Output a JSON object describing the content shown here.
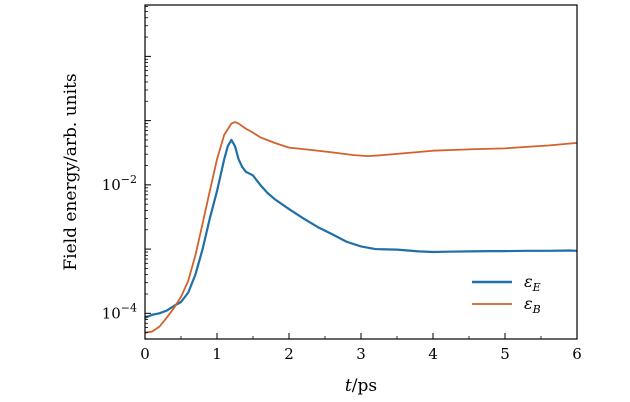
{
  "chart_data": {
    "type": "line",
    "xlabel": "t/ps",
    "ylabel": "Field energy/arb. units",
    "xlim": [
      0,
      6
    ],
    "ylim_log10": [
      -4.4,
      0.8
    ],
    "yscale": "log",
    "x_ticks": [
      {
        "value": 0,
        "label": "0"
      },
      {
        "value": 1,
        "label": "1"
      },
      {
        "value": 2,
        "label": "2"
      },
      {
        "value": 3,
        "label": "3"
      },
      {
        "value": 4,
        "label": "4"
      },
      {
        "value": 5,
        "label": "5"
      },
      {
        "value": 6,
        "label": "6"
      }
    ],
    "y_ticks": [
      {
        "value": 0.0001,
        "label": "10−4"
      },
      {
        "value": 0.01,
        "label": "10−2"
      }
    ],
    "legend_position": "lower-right",
    "series": [
      {
        "name": "εE",
        "color": "#1f6fa8",
        "x": [
          0,
          0.1,
          0.2,
          0.3,
          0.4,
          0.5,
          0.6,
          0.7,
          0.8,
          0.9,
          1.0,
          1.1,
          1.15,
          1.2,
          1.25,
          1.3,
          1.35,
          1.4,
          1.5,
          1.6,
          1.7,
          1.8,
          2.0,
          2.2,
          2.4,
          2.6,
          2.8,
          3.0,
          3.2,
          3.5,
          3.8,
          4.0,
          4.2,
          4.5,
          4.8,
          5.0,
          5.3,
          5.6,
          5.9,
          6.0
        ],
        "y": [
          8.5e-05,
          9.5e-05,
          0.0001,
          0.00011,
          0.00013,
          0.00015,
          0.00021,
          0.0004,
          0.001,
          0.003,
          0.008,
          0.025,
          0.04,
          0.05,
          0.04,
          0.025,
          0.019,
          0.016,
          0.014,
          0.01,
          0.0075,
          0.006,
          0.0042,
          0.003,
          0.0022,
          0.0017,
          0.0013,
          0.0011,
          0.001,
          0.00098,
          0.00092,
          0.0009,
          0.00091,
          0.00092,
          0.00093,
          0.00093,
          0.00094,
          0.00094,
          0.00095,
          0.00094
        ]
      },
      {
        "name": "εB",
        "color": "#d2622a",
        "x": [
          0,
          0.1,
          0.2,
          0.3,
          0.4,
          0.5,
          0.6,
          0.7,
          0.8,
          0.9,
          1.0,
          1.1,
          1.2,
          1.25,
          1.3,
          1.4,
          1.5,
          1.6,
          1.8,
          2.0,
          2.3,
          2.6,
          2.9,
          3.1,
          3.3,
          3.6,
          4.0,
          4.3,
          4.6,
          5.0,
          5.3,
          5.6,
          6.0
        ],
        "y": [
          5e-05,
          5.2e-05,
          6.2e-05,
          8.5e-05,
          0.00012,
          0.00018,
          0.00032,
          0.0008,
          0.0025,
          0.008,
          0.025,
          0.06,
          0.09,
          0.095,
          0.09,
          0.075,
          0.065,
          0.055,
          0.045,
          0.038,
          0.035,
          0.032,
          0.029,
          0.028,
          0.029,
          0.031,
          0.034,
          0.035,
          0.036,
          0.037,
          0.039,
          0.041,
          0.045
        ]
      }
    ]
  }
}
